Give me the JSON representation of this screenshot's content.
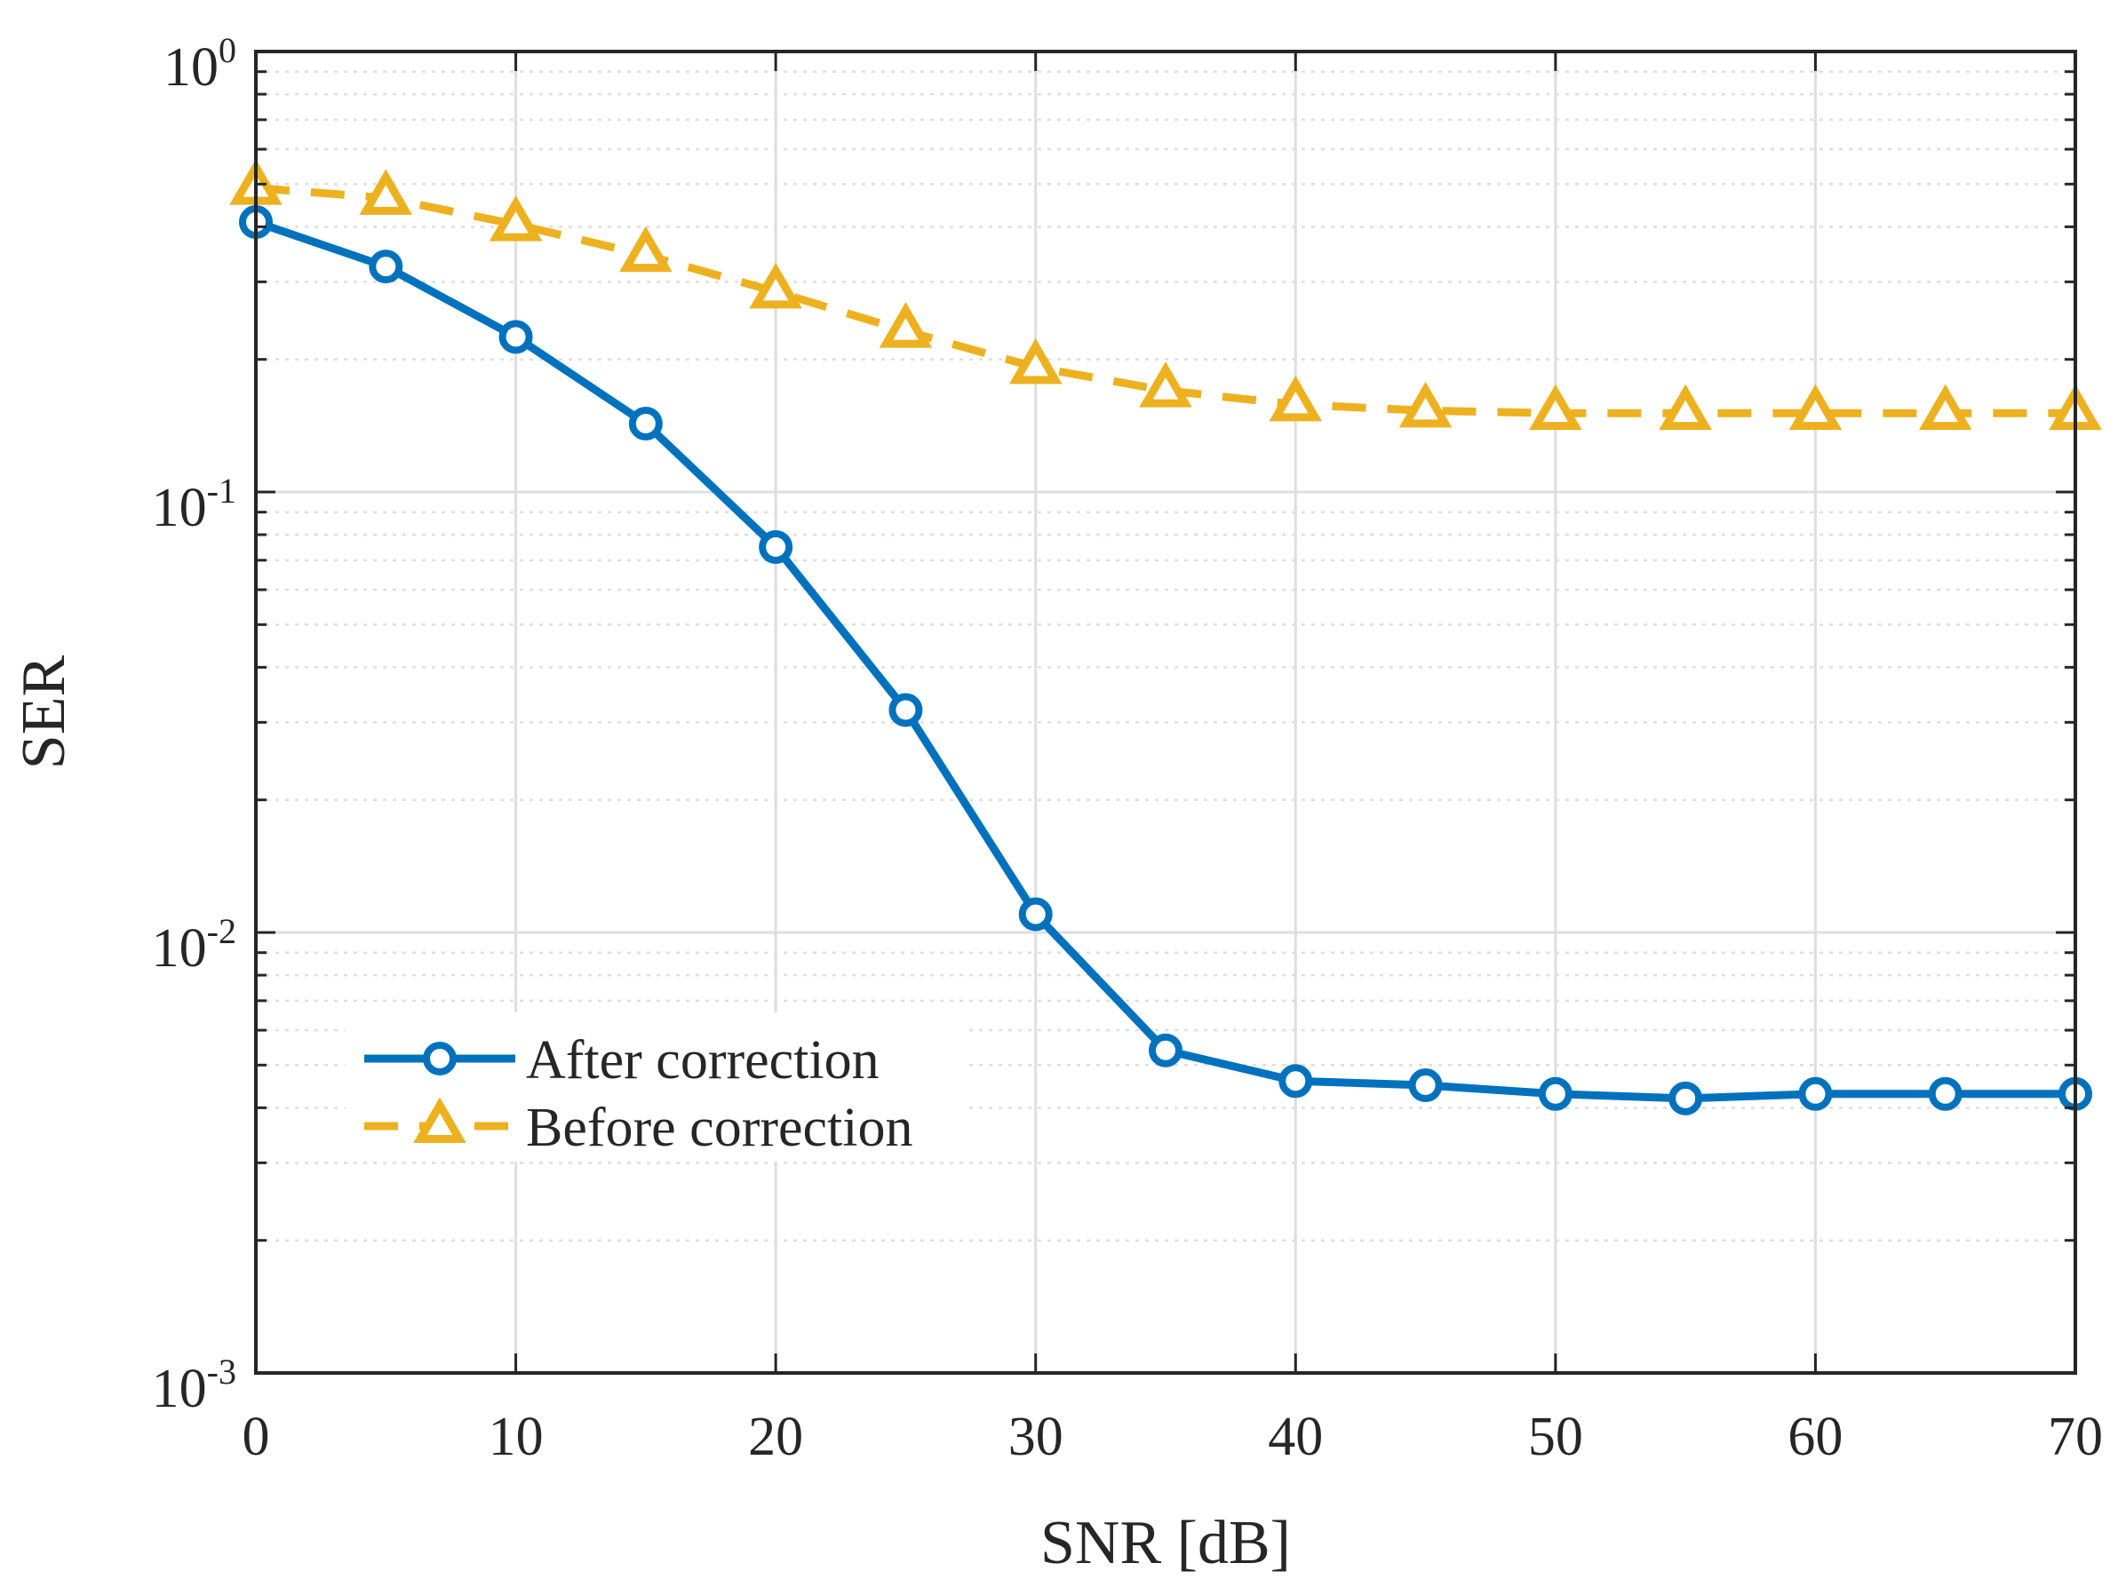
{
  "chart_data": {
    "type": "line",
    "title": "",
    "xlabel": "SNR [dB]",
    "ylabel": "SER",
    "xlim": [
      0,
      70
    ],
    "ylim": [
      0.001,
      1
    ],
    "yscale": "log",
    "grid": true,
    "x_ticks": [
      0,
      10,
      20,
      30,
      40,
      50,
      60,
      70
    ],
    "y_ticks": [
      {
        "base": "10",
        "exp": "-3",
        "value": 0.001
      },
      {
        "base": "10",
        "exp": "-2",
        "value": 0.01
      },
      {
        "base": "10",
        "exp": "-1",
        "value": 0.1
      },
      {
        "base": "10",
        "exp": "0",
        "value": 1
      }
    ],
    "x": [
      0,
      5,
      10,
      15,
      20,
      25,
      30,
      35,
      40,
      45,
      50,
      55,
      60,
      65,
      70
    ],
    "series": [
      {
        "name": "After correction",
        "color": "#0072BD",
        "line_style": "solid",
        "marker": "circle",
        "values": [
          0.41,
          0.325,
          0.225,
          0.143,
          0.075,
          0.032,
          0.011,
          0.0054,
          0.0046,
          0.0045,
          0.0043,
          0.0042,
          0.0043,
          0.0043,
          0.0043
        ]
      },
      {
        "name": "Before correction",
        "color": "#EDB120",
        "line_style": "dashed",
        "marker": "triangle",
        "values": [
          0.49,
          0.465,
          0.405,
          0.345,
          0.285,
          0.232,
          0.192,
          0.17,
          0.158,
          0.153,
          0.151,
          0.151,
          0.151,
          0.151,
          0.151
        ]
      }
    ],
    "legend": {
      "position": "lower-left",
      "entries": [
        "After correction",
        "Before correction"
      ]
    }
  }
}
